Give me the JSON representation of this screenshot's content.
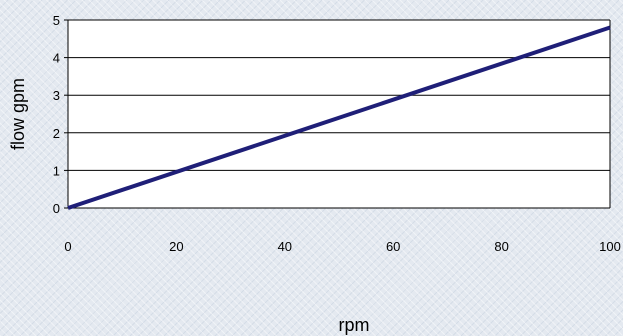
{
  "chart_data": {
    "type": "line",
    "xlabel": "rpm",
    "ylabel": "flow gpm",
    "xlim": [
      0,
      100
    ],
    "ylim": [
      0,
      5
    ],
    "xticks": [
      0,
      20,
      40,
      60,
      80,
      100
    ],
    "yticks": [
      0,
      1,
      2,
      3,
      4,
      5
    ],
    "grid": "horizontal",
    "legend": "none",
    "series": [
      {
        "x": [
          0,
          100
        ],
        "y": [
          0,
          4.8
        ],
        "color": "#1f1f78"
      }
    ],
    "colors": {
      "plot_background": "#ffffff",
      "gridline": "#000000"
    }
  }
}
